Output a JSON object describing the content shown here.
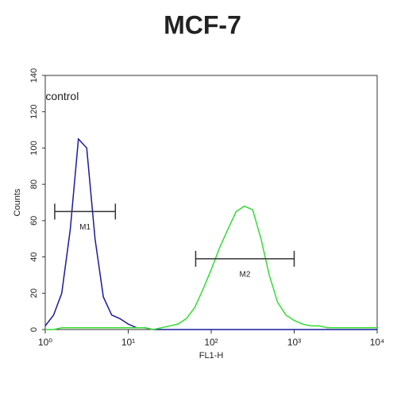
{
  "chart_data": {
    "type": "line",
    "title": "MCF-7",
    "xlabel": "FL1-H",
    "ylabel": "Counts",
    "xscale": "log",
    "xlim": [
      1,
      10000
    ],
    "ylim": [
      0,
      140
    ],
    "xticks": [
      {
        "value": 1,
        "label": "10⁰"
      },
      {
        "value": 10,
        "label": "10¹"
      },
      {
        "value": 100,
        "label": "10²"
      },
      {
        "value": 1000,
        "label": "10³"
      },
      {
        "value": 10000,
        "label": "10⁴"
      }
    ],
    "yticks": [
      0,
      20,
      40,
      60,
      80,
      100,
      120,
      140
    ],
    "x": [
      1,
      1.26,
      1.58,
      2,
      2.51,
      3.16,
      3.98,
      5.01,
      6.31,
      7.94,
      10,
      12.6,
      15.8,
      20,
      25.1,
      31.6,
      39.8,
      50.1,
      63.1,
      79.4,
      100,
      126,
      158,
      200,
      251,
      316,
      398,
      501,
      631,
      794,
      1000,
      1259,
      1585,
      1995,
      2512,
      3162,
      3981,
      5012,
      6310,
      7943,
      10000
    ],
    "series": [
      {
        "name": "control",
        "color": "#1a1aa0",
        "values": [
          2,
          8,
          20,
          55,
          105,
          100,
          50,
          18,
          8,
          6,
          3,
          1,
          1,
          0,
          0,
          0,
          0,
          0,
          0,
          0,
          0,
          0,
          0,
          0,
          0,
          0,
          0,
          0,
          0,
          0,
          0,
          0,
          0,
          0,
          0,
          0,
          0,
          0,
          0,
          0,
          0
        ]
      },
      {
        "color": "#33dd33",
        "values": [
          0,
          0,
          1,
          1,
          1,
          1,
          1,
          1,
          1,
          1,
          1,
          1,
          1,
          0,
          1,
          2,
          3,
          6,
          12,
          22,
          33,
          45,
          55,
          65,
          68,
          66,
          50,
          30,
          15,
          8,
          5,
          3,
          2,
          2,
          1,
          1,
          1,
          1,
          1,
          1,
          1
        ]
      }
    ],
    "markers": [
      {
        "label": "M1",
        "x": [
          1.3,
          7
        ],
        "y": 65
      },
      {
        "label": "M2",
        "x": [
          65,
          1000
        ],
        "y": 39
      }
    ],
    "annotations": [
      {
        "text": "control",
        "x": 1.6,
        "y": 128
      }
    ]
  }
}
